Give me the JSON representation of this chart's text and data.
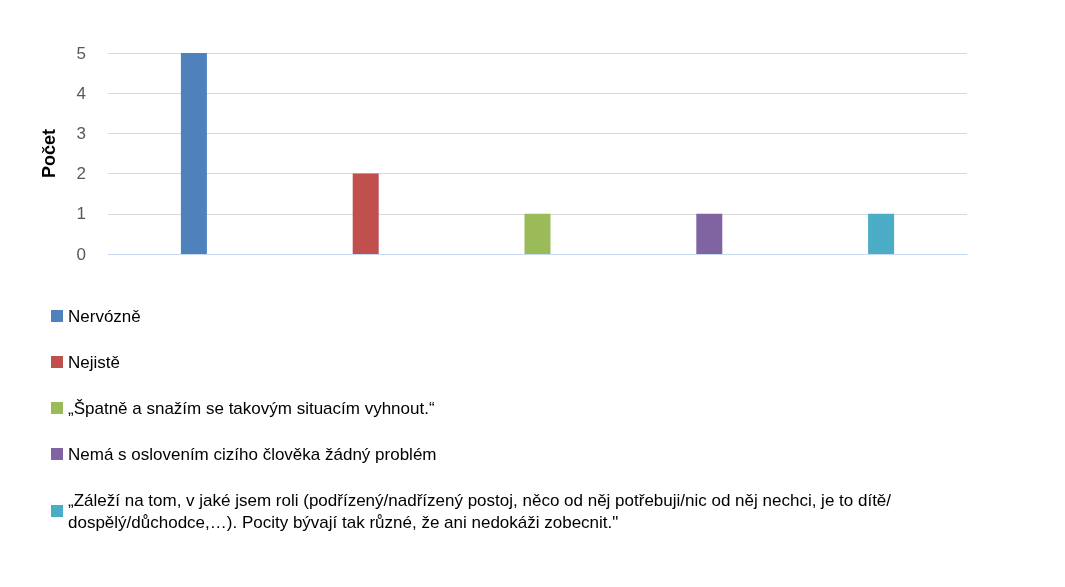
{
  "chart_data": {
    "type": "bar",
    "ylabel": "Počet",
    "categories": [
      null,
      null,
      null,
      null,
      null
    ],
    "series": [
      {
        "name": "Nervózně",
        "color": "#4f81bd",
        "values": [
          5,
          null,
          null,
          null,
          null
        ]
      },
      {
        "name": "Nejistě",
        "color": "#c0504d",
        "values": [
          null,
          2,
          null,
          null,
          null
        ]
      },
      {
        "name": "„Špatně a snažím se takovým situacím vyhnout.“",
        "color": "#9bbb59",
        "values": [
          null,
          null,
          1,
          null,
          null
        ]
      },
      {
        "name": "Nemá s oslovením cizího člověka žádný problém",
        "color": "#8064a2",
        "values": [
          null,
          null,
          null,
          1,
          null
        ]
      },
      {
        "name": "„Záleží na tom, v jaké jsem roli (podřízený/nadřízený postoj, něco od něj potřebuji/nic od něj nechci, je to dítě/dospělý/důchodce,…). Pocity bývají tak různé, že ani nedokáži zobecnit.\"",
        "color": "#4bacc6",
        "values": [
          null,
          null,
          null,
          null,
          1
        ]
      }
    ],
    "ylim": [
      0,
      5
    ],
    "yticks": [
      0,
      1,
      2,
      3,
      4,
      5
    ],
    "grid": "y",
    "legend": "bottom left"
  }
}
